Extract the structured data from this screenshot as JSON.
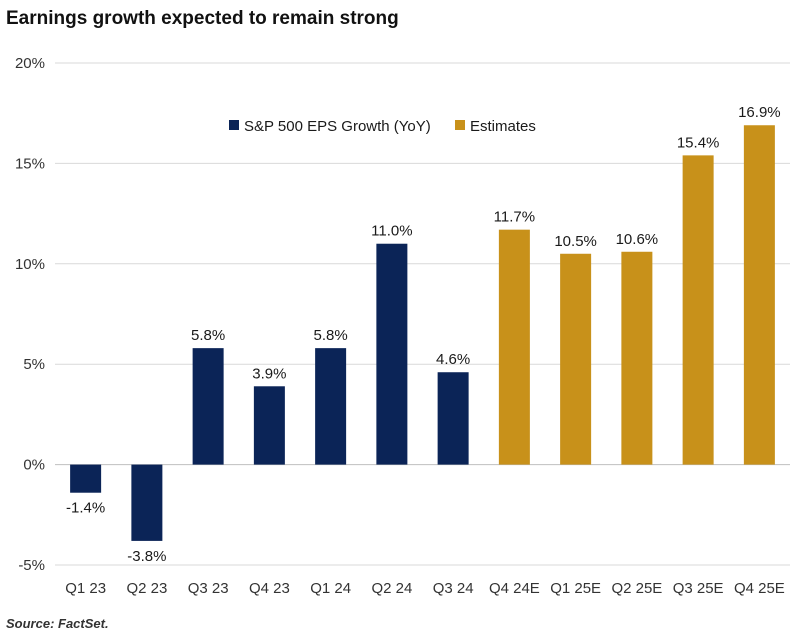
{
  "title": "Earnings growth expected to remain strong",
  "source": "Source: FactSet.",
  "colors": {
    "actual": "#0b2457",
    "estimate": "#c8911a",
    "grid": "#d9d9d9"
  },
  "chart_data": {
    "type": "bar",
    "title": "Earnings growth expected to remain strong",
    "categories": [
      "Q1 23",
      "Q2 23",
      "Q3 23",
      "Q4 23",
      "Q1 24",
      "Q2 24",
      "Q3 24",
      "Q4 24E",
      "Q1 25E",
      "Q2 25E",
      "Q3 25E",
      "Q4 25E"
    ],
    "series": [
      {
        "name": "S&P 500 EPS Growth (YoY)",
        "color": "#0b2457",
        "values": [
          -1.4,
          -3.8,
          5.8,
          3.9,
          5.8,
          11.0,
          4.6,
          null,
          null,
          null,
          null,
          null
        ]
      },
      {
        "name": "Estimates",
        "color": "#c8911a",
        "values": [
          null,
          null,
          null,
          null,
          null,
          null,
          null,
          11.7,
          10.5,
          10.6,
          15.4,
          16.9
        ]
      }
    ],
    "data_labels": [
      "-1.4%",
      "-3.8%",
      "5.8%",
      "3.9%",
      "5.8%",
      "11.0%",
      "4.6%",
      "11.7%",
      "10.5%",
      "10.6%",
      "15.4%",
      "16.9%"
    ],
    "yticks": [
      20,
      15,
      10,
      5,
      0,
      -5
    ],
    "ytick_labels": [
      "20%",
      "15%",
      "10%",
      "5%",
      "0%",
      "-5%"
    ],
    "ylim": [
      -5,
      20
    ],
    "xlabel": "",
    "ylabel": "",
    "grid": true,
    "legend": "top-center"
  }
}
